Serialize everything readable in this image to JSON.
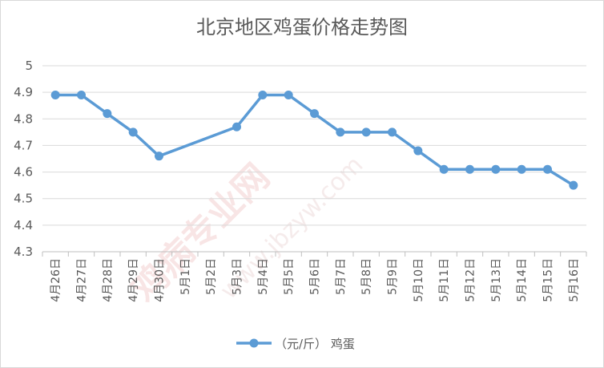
{
  "chart_data": {
    "type": "line",
    "title": "北京地区鸡蛋价格走势图",
    "categories": [
      "4月26日",
      "4月27日",
      "4月28日",
      "4月29日",
      "4月30日",
      "5月1日",
      "5月2日",
      "5月3日",
      "5月4日",
      "5月5日",
      "5月6日",
      "5月7日",
      "5月8日",
      "5月9日",
      "5月10日",
      "5月11日",
      "5月12日",
      "5月13日",
      "5月14日",
      "5月15日",
      "5月16日"
    ],
    "series": [
      {
        "name": "（元/斤） 鸡蛋",
        "color": "#5b9bd5",
        "values": [
          4.89,
          4.89,
          4.82,
          4.75,
          4.66,
          null,
          null,
          4.77,
          4.89,
          4.89,
          4.82,
          4.75,
          4.75,
          4.75,
          4.68,
          4.61,
          4.61,
          4.61,
          4.61,
          4.61,
          4.55
        ]
      }
    ],
    "ylim": [
      4.3,
      5
    ],
    "yticks": [
      "4.3",
      "4.4",
      "4.5",
      "4.6",
      "4.7",
      "4.8",
      "4.9",
      "5"
    ],
    "grid": true,
    "legend_position": "bottom"
  },
  "watermark": {
    "main": "鸡病专业网",
    "sub": "www.jbzyw.com"
  }
}
